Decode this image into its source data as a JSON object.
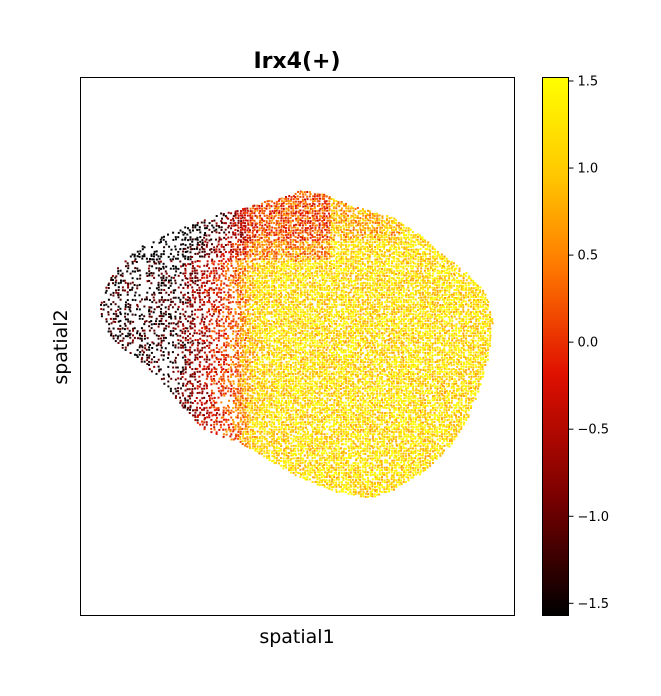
{
  "chart_data": {
    "type": "scatter",
    "title": "Irx4(+)",
    "xlabel": "spatial1",
    "ylabel": "spatial2",
    "x_ticks": [],
    "y_ticks": [],
    "grid": false,
    "colormap": {
      "name": "hot",
      "range": [
        -1.57,
        1.52
      ],
      "stops": [
        "#000000",
        "#7a0000",
        "#e01000",
        "#ff7a00",
        "#ffc800",
        "#ffff00"
      ],
      "ticks": [
        1.5,
        1.0,
        0.5,
        0.0,
        -0.5,
        -1.0,
        -1.5
      ],
      "tick_labels": [
        "1.5",
        "1.0",
        "0.5",
        "0.0",
        "−0.5",
        "−1.0",
        "−1.5"
      ]
    }
  }
}
